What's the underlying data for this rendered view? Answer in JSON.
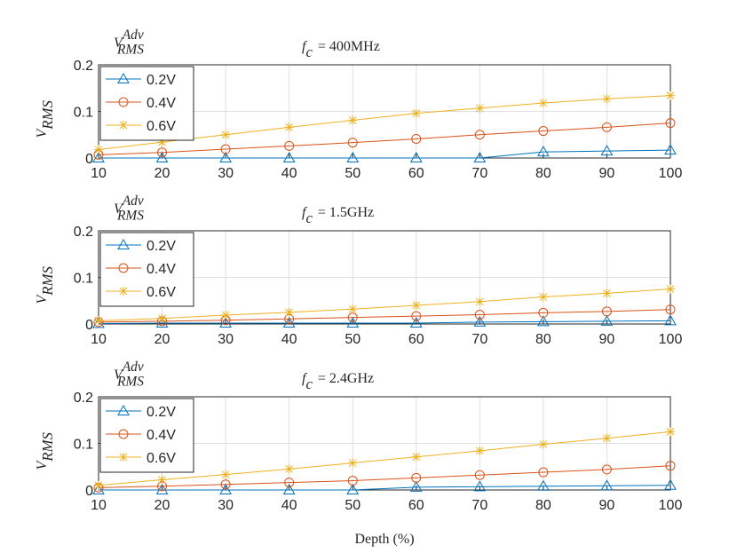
{
  "chart_data": [
    {
      "type": "line",
      "title": {
        "base": "f",
        "sub": "c",
        "rest": "= 400MHz"
      },
      "ylabel": {
        "base": "V",
        "sub": "RMS"
      },
      "legend_title": {
        "base": "V",
        "sub": "RMS",
        "sup": "Adv"
      },
      "x": [
        10,
        20,
        30,
        40,
        50,
        60,
        70,
        80,
        90,
        100
      ],
      "xlim": [
        10,
        100
      ],
      "xticks": [
        10,
        20,
        30,
        40,
        50,
        60,
        70,
        80,
        90,
        100
      ],
      "ylim": [
        0,
        0.2
      ],
      "yticks": [
        0,
        0.1,
        0.2
      ],
      "grid": true,
      "legend": "upper-left",
      "series": [
        {
          "name": "0.2V",
          "color": "#0072BD",
          "marker": "triangle",
          "values": [
            0,
            0,
            0,
            0,
            0,
            0,
            0,
            0.013,
            0.015,
            0.017
          ]
        },
        {
          "name": "0.4V",
          "color": "#D95319",
          "marker": "circle",
          "values": [
            0.007,
            0.012,
            0.019,
            0.026,
            0.033,
            0.041,
            0.05,
            0.058,
            0.066,
            0.075
          ]
        },
        {
          "name": "0.6V",
          "color": "#EDB120",
          "marker": "asterisk",
          "values": [
            0.018,
            0.034,
            0.05,
            0.066,
            0.081,
            0.096,
            0.107,
            0.118,
            0.127,
            0.134
          ]
        }
      ]
    },
    {
      "type": "line",
      "title": {
        "base": "f",
        "sub": "c",
        "rest": "= 1.5GHz"
      },
      "ylabel": {
        "base": "V",
        "sub": "RMS"
      },
      "legend_title": {
        "base": "V",
        "sub": "RMS",
        "sup": "Adv"
      },
      "x": [
        10,
        20,
        30,
        40,
        50,
        60,
        70,
        80,
        90,
        100
      ],
      "xlim": [
        10,
        100
      ],
      "xticks": [
        10,
        20,
        30,
        40,
        50,
        60,
        70,
        80,
        90,
        100
      ],
      "ylim": [
        0,
        0.2
      ],
      "yticks": [
        0,
        0.1,
        0.2
      ],
      "grid": true,
      "legend": "upper-left",
      "series": [
        {
          "name": "0.2V",
          "color": "#0072BD",
          "marker": "triangle",
          "values": [
            0.001,
            0.002,
            0.002,
            0.002,
            0.002,
            0.002,
            0.004,
            0.005,
            0.006,
            0.007
          ]
        },
        {
          "name": "0.4V",
          "color": "#D95319",
          "marker": "circle",
          "values": [
            0.004,
            0.006,
            0.008,
            0.011,
            0.014,
            0.017,
            0.02,
            0.024,
            0.027,
            0.031
          ]
        },
        {
          "name": "0.6V",
          "color": "#EDB120",
          "marker": "asterisk",
          "values": [
            0.007,
            0.012,
            0.019,
            0.025,
            0.032,
            0.04,
            0.048,
            0.058,
            0.066,
            0.075
          ]
        }
      ]
    },
    {
      "type": "line",
      "title": {
        "base": "f",
        "sub": "c",
        "rest": "= 2.4GHz"
      },
      "ylabel": {
        "base": "V",
        "sub": "RMS"
      },
      "legend_title": {
        "base": "V",
        "sub": "RMS",
        "sup": "Adv"
      },
      "xlabel": "Depth (%)",
      "x": [
        10,
        20,
        30,
        40,
        50,
        60,
        70,
        80,
        90,
        100
      ],
      "xlim": [
        10,
        100
      ],
      "xticks": [
        10,
        20,
        30,
        40,
        50,
        60,
        70,
        80,
        90,
        100
      ],
      "ylim": [
        0,
        0.2
      ],
      "yticks": [
        0,
        0.1,
        0.2
      ],
      "grid": true,
      "legend": "upper-left",
      "series": [
        {
          "name": "0.2V",
          "color": "#0072BD",
          "marker": "triangle",
          "values": [
            0,
            0,
            0,
            0,
            0,
            0.006,
            0.007,
            0.008,
            0.009,
            0.01
          ]
        },
        {
          "name": "0.4V",
          "color": "#D95319",
          "marker": "circle",
          "values": [
            0.005,
            0.008,
            0.012,
            0.016,
            0.02,
            0.026,
            0.032,
            0.038,
            0.044,
            0.052
          ]
        },
        {
          "name": "0.6V",
          "color": "#EDB120",
          "marker": "asterisk",
          "values": [
            0.01,
            0.022,
            0.033,
            0.045,
            0.058,
            0.071,
            0.084,
            0.098,
            0.111,
            0.125
          ]
        }
      ]
    }
  ]
}
